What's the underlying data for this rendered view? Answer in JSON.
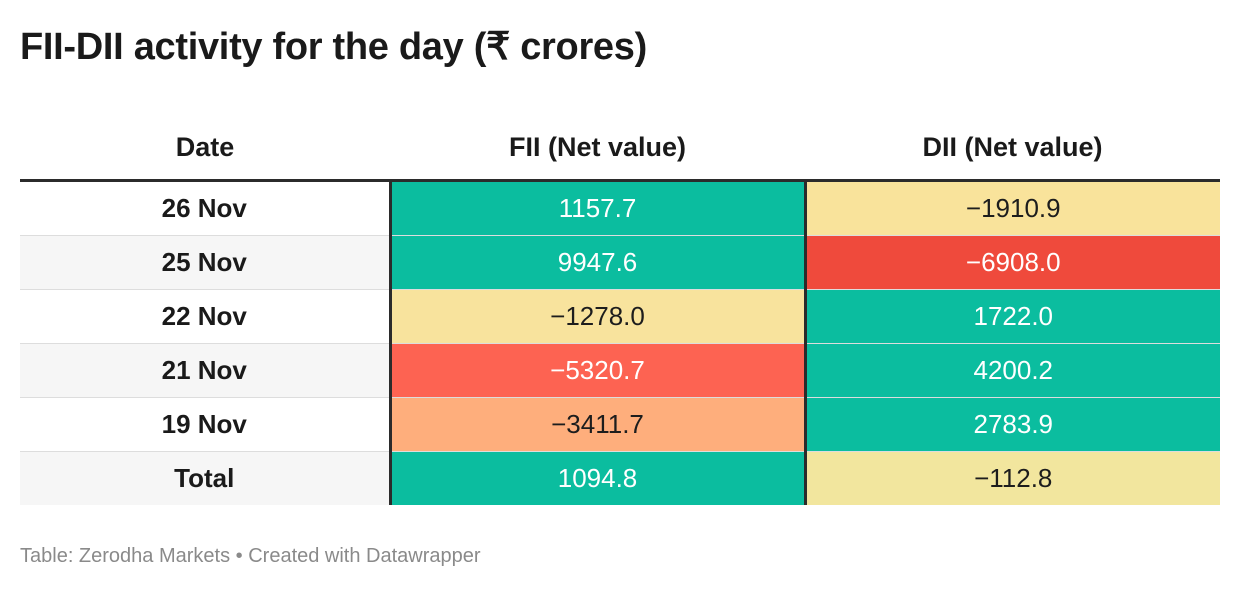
{
  "title": "FII-DII activity for the day (₹ crores)",
  "footer": "Table: Zerodha Markets • Created with Datawrapper",
  "chart_data": {
    "type": "table",
    "columns": [
      "Date",
      "FII (Net value)",
      "DII (Net value)"
    ],
    "rows": [
      {
        "date": "26 Nov",
        "fii": "1157.7",
        "dii": "−1910.9",
        "fii_color": "#0bbd9f",
        "dii_color": "#f9e39b"
      },
      {
        "date": "25 Nov",
        "fii": "9947.6",
        "dii": "−6908.0",
        "fii_color": "#0bbd9f",
        "dii_color": "#ef4a3c"
      },
      {
        "date": "22 Nov",
        "fii": "−1278.0",
        "dii": "1722.0",
        "fii_color": "#f8e39d",
        "dii_color": "#0bbd9f"
      },
      {
        "date": "21 Nov",
        "fii": "−5320.7",
        "dii": "4200.2",
        "fii_color": "#fd6352",
        "dii_color": "#0bbd9f"
      },
      {
        "date": "19 Nov",
        "fii": "−3411.7",
        "dii": "2783.9",
        "fii_color": "#feae7c",
        "dii_color": "#0bbd9f"
      }
    ],
    "total": {
      "date": "Total",
      "fii": "1094.8",
      "dii": "−112.8",
      "fii_color": "#0bbd9f",
      "dii_color": "#f2e69e"
    },
    "text_colors": {
      "on_teal": "#ffffff",
      "on_light": "#1d1d1d",
      "on_red": "#ffffff"
    }
  }
}
